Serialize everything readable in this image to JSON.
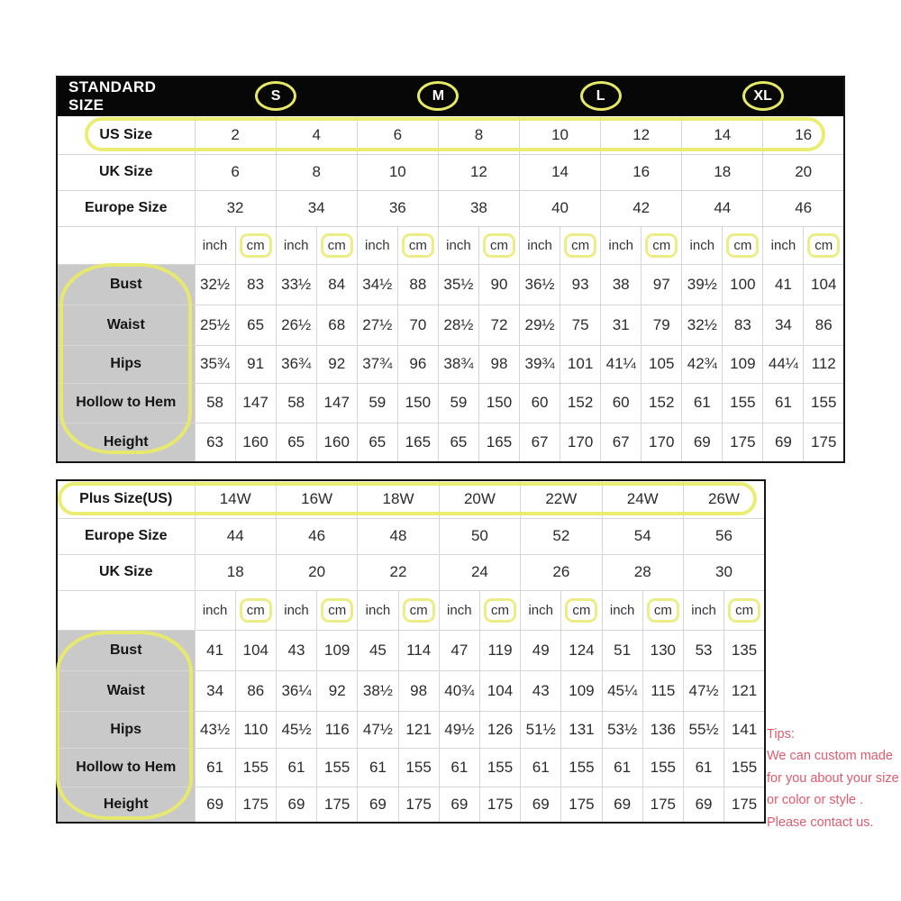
{
  "standard_table": {
    "title": "STANDARD SIZE",
    "size_groups": [
      "S",
      "M",
      "L",
      "XL"
    ],
    "header_rows": [
      {
        "label": "US Size",
        "values": [
          "2",
          "4",
          "6",
          "8",
          "10",
          "12",
          "14",
          "16"
        ]
      },
      {
        "label": "UK Size",
        "values": [
          "6",
          "8",
          "10",
          "12",
          "14",
          "16",
          "18",
          "20"
        ]
      },
      {
        "label": "Europe Size",
        "values": [
          "32",
          "34",
          "36",
          "38",
          "40",
          "42",
          "44",
          "46"
        ]
      }
    ],
    "unit_row": {
      "inch": "inch",
      "cm": "cm"
    },
    "measure_rows": [
      {
        "label": "Bust",
        "values": [
          "32½",
          "83",
          "33½",
          "84",
          "34½",
          "88",
          "35½",
          "90",
          "36½",
          "93",
          "38",
          "97",
          "39½",
          "100",
          "41",
          "104"
        ]
      },
      {
        "label": "Waist",
        "values": [
          "25½",
          "65",
          "26½",
          "68",
          "27½",
          "70",
          "28½",
          "72",
          "29½",
          "75",
          "31",
          "79",
          "32½",
          "83",
          "34",
          "86"
        ]
      },
      {
        "label": "Hips",
        "values": [
          "35¾",
          "91",
          "36¾",
          "92",
          "37¾",
          "96",
          "38¾",
          "98",
          "39¾",
          "101",
          "41¼",
          "105",
          "42¾",
          "109",
          "44¼",
          "112"
        ]
      },
      {
        "label": "Hollow to Hem",
        "values": [
          "58",
          "147",
          "58",
          "147",
          "59",
          "150",
          "59",
          "150",
          "60",
          "152",
          "60",
          "152",
          "61",
          "155",
          "61",
          "155"
        ]
      },
      {
        "label": "Height",
        "values": [
          "63",
          "160",
          "65",
          "160",
          "65",
          "165",
          "65",
          "165",
          "67",
          "170",
          "67",
          "170",
          "69",
          "175",
          "69",
          "175"
        ]
      }
    ]
  },
  "plus_table": {
    "header_rows": [
      {
        "label": "Plus Size(US)",
        "values": [
          "14W",
          "16W",
          "18W",
          "20W",
          "22W",
          "24W",
          "26W"
        ]
      },
      {
        "label": "Europe Size",
        "values": [
          "44",
          "46",
          "48",
          "50",
          "52",
          "54",
          "56"
        ]
      },
      {
        "label": "UK Size",
        "values": [
          "18",
          "20",
          "22",
          "24",
          "26",
          "28",
          "30"
        ]
      }
    ],
    "unit_row": {
      "inch": "inch",
      "cm": "cm"
    },
    "measure_rows": [
      {
        "label": "Bust",
        "values": [
          "41",
          "104",
          "43",
          "109",
          "45",
          "114",
          "47",
          "119",
          "49",
          "124",
          "51",
          "130",
          "53",
          "135"
        ]
      },
      {
        "label": "Waist",
        "values": [
          "34",
          "86",
          "36¼",
          "92",
          "38½",
          "98",
          "40¾",
          "104",
          "43",
          "109",
          "45¼",
          "115",
          "47½",
          "121"
        ]
      },
      {
        "label": "Hips",
        "values": [
          "43½",
          "110",
          "45½",
          "116",
          "47½",
          "121",
          "49½",
          "126",
          "51½",
          "131",
          "53½",
          "136",
          "55½",
          "141"
        ]
      },
      {
        "label": "Hollow to Hem",
        "values": [
          "61",
          "155",
          "61",
          "155",
          "61",
          "155",
          "61",
          "155",
          "61",
          "155",
          "61",
          "155",
          "61",
          "155"
        ]
      },
      {
        "label": "Height",
        "values": [
          "69",
          "175",
          "69",
          "175",
          "69",
          "175",
          "69",
          "175",
          "69",
          "175",
          "69",
          "175",
          "69",
          "175"
        ]
      }
    ]
  },
  "tips": {
    "title": "Tips:",
    "lines": [
      "We can custom made",
      "for you about your size",
      "or color or style .",
      "Please contact us."
    ]
  },
  "colors": {
    "highlight_yellow": "#e8eb67",
    "header_black": "#070707",
    "label_gray": "#c9c9c9",
    "grid_gray": "#d6d6d6",
    "tips_red": "#e15a6d"
  }
}
